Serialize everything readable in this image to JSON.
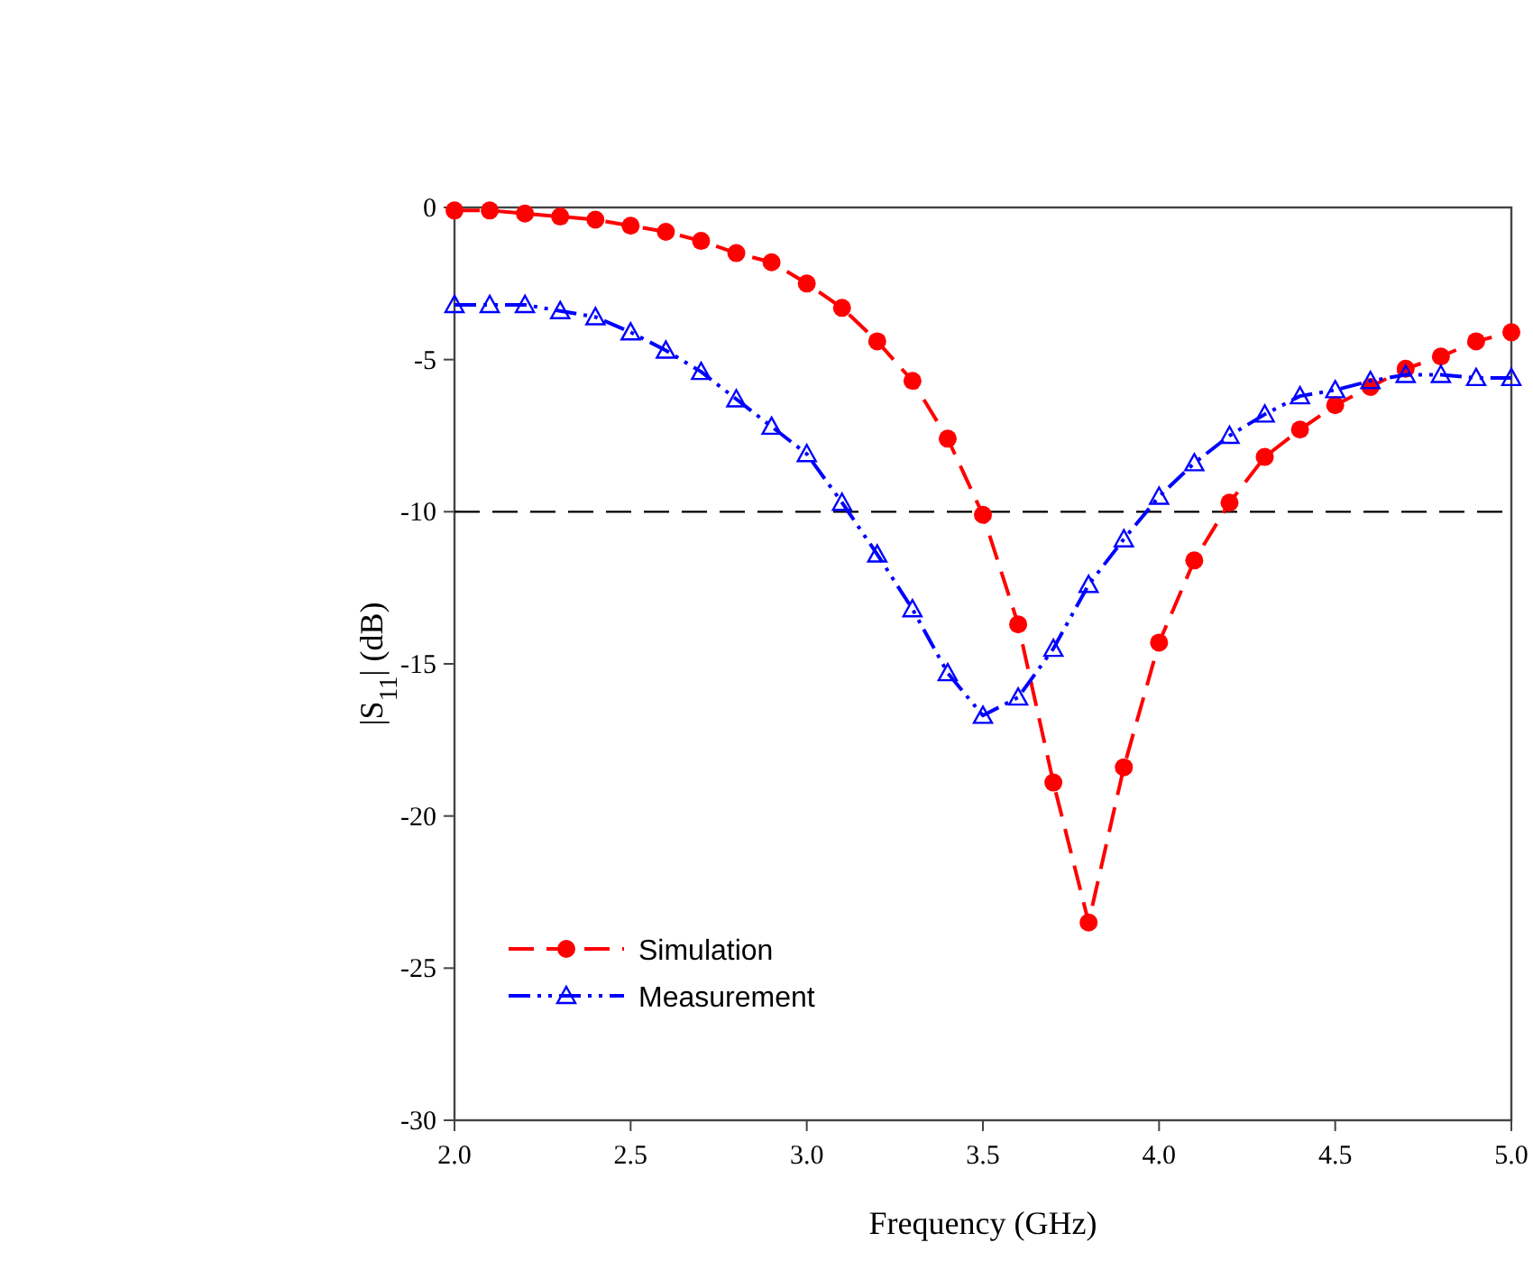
{
  "chart_data": {
    "type": "line",
    "xlabel": "Frequency (GHz)",
    "ylabel": "|S$_{11}$| (dB)",
    "x": [
      2.0,
      2.1,
      2.2,
      2.3,
      2.4,
      2.5,
      2.6,
      2.7,
      2.8,
      2.9,
      3.0,
      3.1,
      3.2,
      3.3,
      3.4,
      3.5,
      3.6,
      3.7,
      3.8,
      3.9,
      4.0,
      4.1,
      4.2,
      4.3,
      4.4,
      4.5,
      4.6,
      4.7,
      4.8,
      4.9,
      5.0
    ],
    "series": [
      {
        "name": "Simulation",
        "color": "#ff0000",
        "marker": "circle",
        "line_style": "dashed",
        "values": [
          -0.1,
          -0.1,
          -0.2,
          -0.3,
          -0.4,
          -0.6,
          -0.8,
          -1.1,
          -1.5,
          -1.8,
          -2.5,
          -3.3,
          -4.4,
          -5.7,
          -7.6,
          -10.1,
          -13.7,
          -18.9,
          -23.5,
          -18.4,
          -14.3,
          -11.6,
          -9.7,
          -8.2,
          -7.3,
          -6.5,
          -5.9,
          -5.3,
          -4.9,
          -4.4,
          -4.1
        ]
      },
      {
        "name": "Measurement",
        "color": "#0000ff",
        "marker": "triangle",
        "line_style": "dashdot",
        "values": [
          -3.2,
          -3.2,
          -3.2,
          -3.4,
          -3.6,
          -4.1,
          -4.7,
          -5.4,
          -6.3,
          -7.2,
          -8.1,
          -9.7,
          -11.4,
          -13.2,
          -15.3,
          -16.7,
          -16.1,
          -14.5,
          -12.4,
          -10.9,
          -9.5,
          -8.4,
          -7.5,
          -6.8,
          -6.2,
          -6.0,
          -5.7,
          -5.5,
          -5.5,
          -5.6,
          -5.6
        ]
      }
    ],
    "xlim": [
      2.0,
      5.0
    ],
    "xticks": [
      {
        "value": 2,
        "label": "2.0"
      },
      {
        "value": 2.5,
        "label": "2.5"
      },
      {
        "value": 3,
        "label": "3.0"
      },
      {
        "value": 3.5,
        "label": "3.5"
      },
      {
        "value": 4,
        "label": "4.0"
      },
      {
        "value": 4.5,
        "label": "4.5"
      },
      {
        "value": 5,
        "label": "5.0"
      }
    ],
    "ylim": [
      -30,
      0
    ],
    "yticks": [
      -30,
      -25,
      -20,
      -15,
      -10,
      -5,
      0
    ],
    "ref_lines": [
      {
        "axis": "y",
        "value": -10,
        "color": "#000000",
        "line_style": "dashed"
      }
    ],
    "legend": "bottom left",
    "grid": false
  }
}
